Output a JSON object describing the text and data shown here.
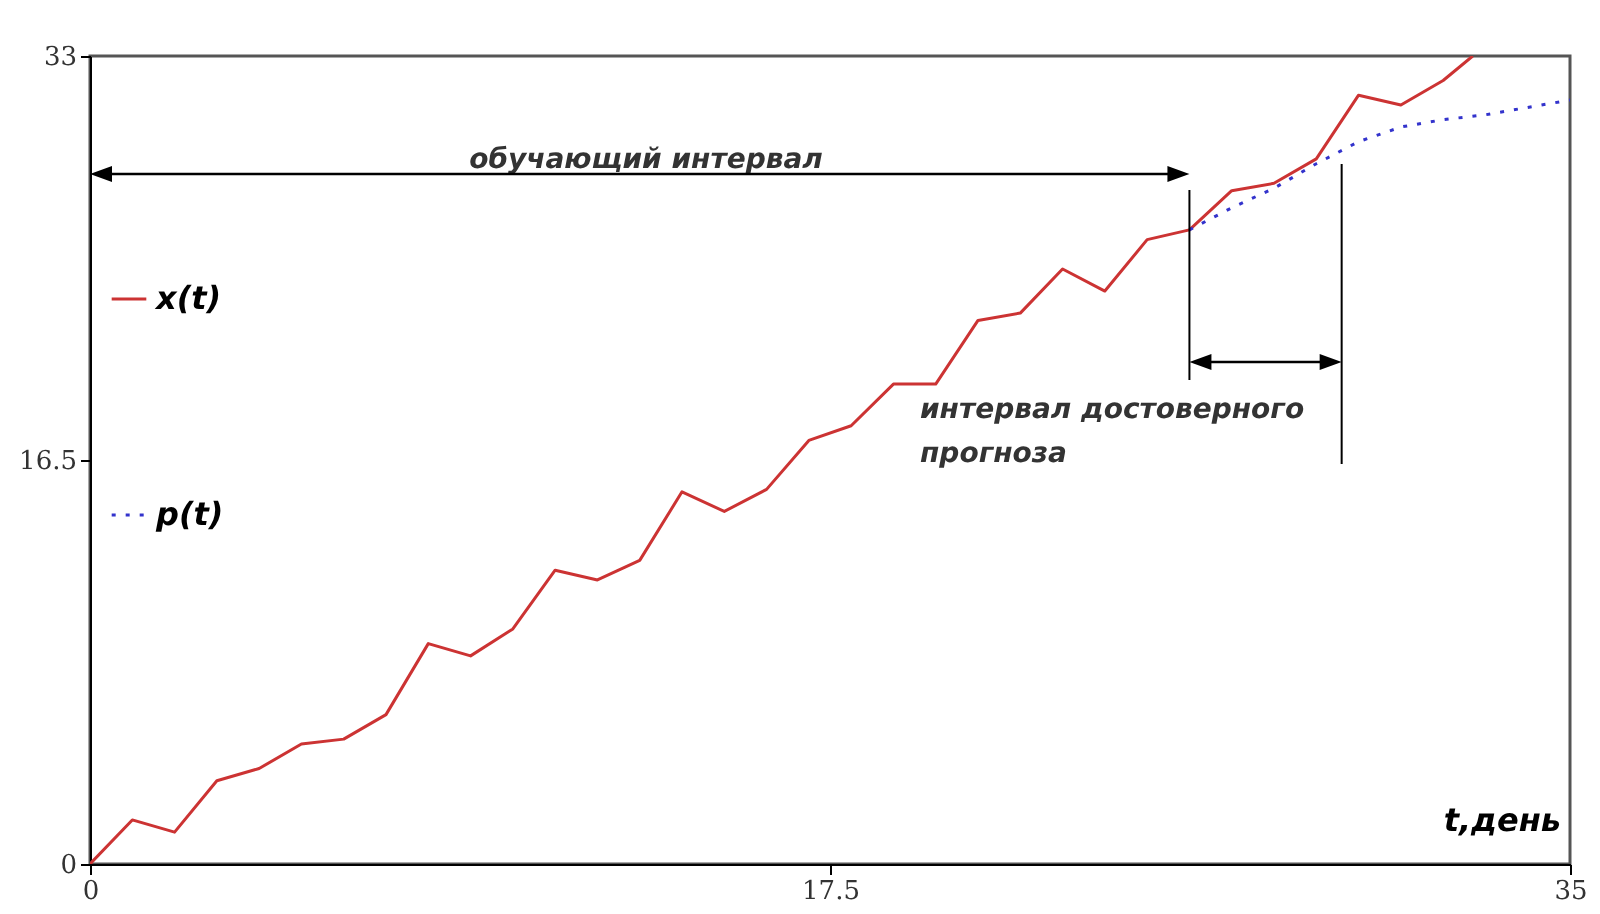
{
  "chart_data": {
    "type": "line",
    "xlabel": "t,день",
    "xlim": [
      0,
      35
    ],
    "xticks": [
      0,
      17.5,
      35
    ],
    "ylim": [
      0,
      33
    ],
    "yticks": [
      0,
      16.5,
      33
    ],
    "grid": false,
    "legend": "left",
    "marker": "none",
    "series": [
      {
        "name": "x(t)",
        "color": "#cc3333",
        "line_style": "solid",
        "x": [
          0,
          1,
          2,
          3,
          4,
          5,
          6,
          7,
          8,
          9,
          10,
          11,
          12,
          13,
          14,
          15,
          16,
          17,
          18,
          19,
          20,
          21,
          22,
          23,
          24,
          25,
          26,
          27,
          28,
          29,
          30,
          31,
          32,
          32.7
        ],
        "values": [
          0,
          1.8,
          1.3,
          3.4,
          3.9,
          4.9,
          5.1,
          6.1,
          9.0,
          8.5,
          9.6,
          12.0,
          11.6,
          12.4,
          15.2,
          14.4,
          15.3,
          17.3,
          17.9,
          19.6,
          19.6,
          22.2,
          22.5,
          24.3,
          23.4,
          25.5,
          25.9,
          27.5,
          27.8,
          28.8,
          31.4,
          31.0,
          32.0,
          33
        ]
      },
      {
        "name": "p(t)",
        "color": "#3333cc",
        "line_style": "dotted",
        "x": [
          26,
          27,
          28,
          29,
          30,
          31,
          32,
          33,
          34,
          35
        ],
        "values": [
          25.9,
          26.8,
          27.6,
          28.6,
          29.5,
          30.1,
          30.4,
          30.6,
          30.9,
          31.2
        ]
      }
    ],
    "ref_lines": [
      {
        "axis": "x",
        "value": 26,
        "color": "#000000"
      },
      {
        "axis": "x",
        "value": 29.6,
        "color": "#000000"
      }
    ],
    "annotations": [
      "обучающий интервал",
      "интервал достоверного прогноза"
    ]
  }
}
